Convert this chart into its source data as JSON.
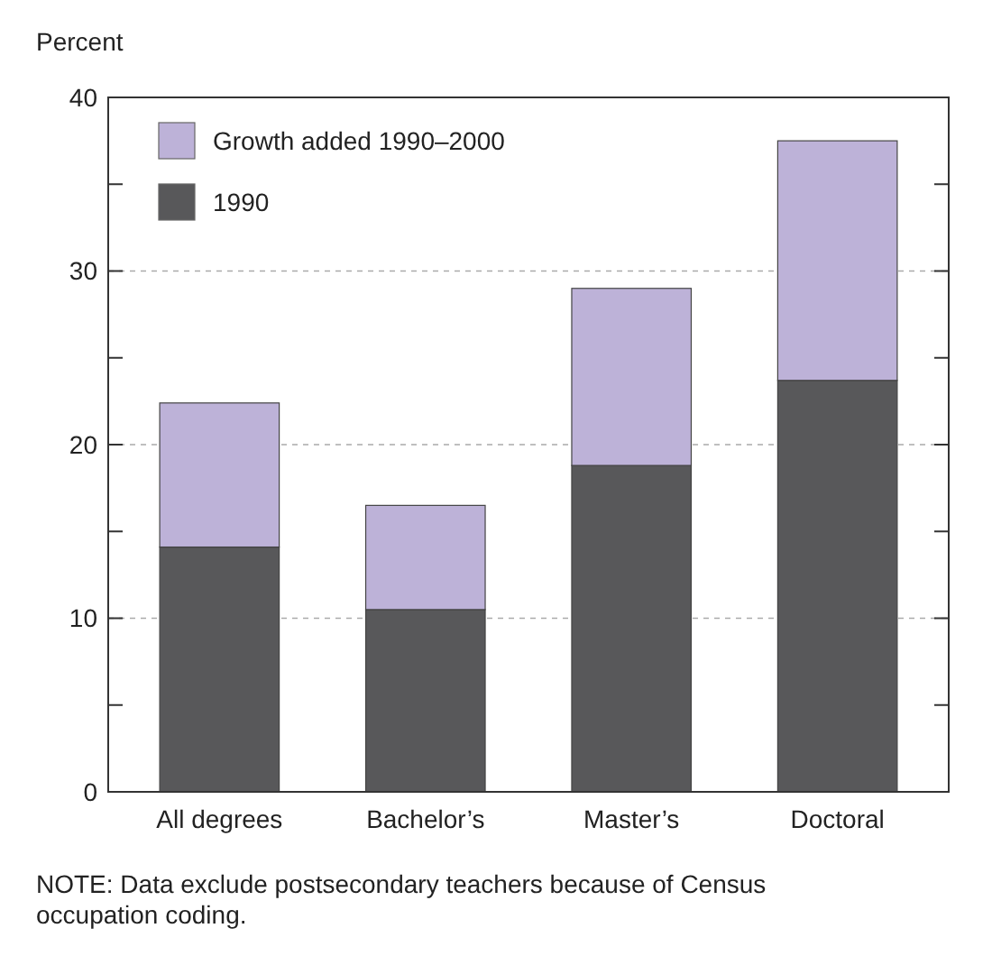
{
  "chart_data": {
    "type": "bar",
    "stacked": true,
    "ylabel": "Percent",
    "categories": [
      "All degrees",
      "Bachelor’s",
      "Master’s",
      "Doctoral"
    ],
    "series": [
      {
        "name": "1990",
        "color": "#58585a",
        "values": [
          14.1,
          10.5,
          18.8,
          23.7
        ]
      },
      {
        "name": "Growth added 1990–2000",
        "color": "#bdb2d8",
        "values": [
          8.3,
          6.0,
          10.2,
          13.8
        ]
      }
    ],
    "ylim": [
      0,
      40
    ],
    "yticks": [
      0,
      {
        "value": 5,
        "label": null
      },
      10,
      {
        "value": 15,
        "label": null
      },
      20,
      {
        "value": 25,
        "label": null
      },
      30,
      {
        "value": 35,
        "label": null
      },
      40
    ],
    "grid": "y",
    "legend": "top left",
    "annotations": [
      "NOTE: Data exclude postsecondary teachers because of Census occupation coding."
    ]
  }
}
